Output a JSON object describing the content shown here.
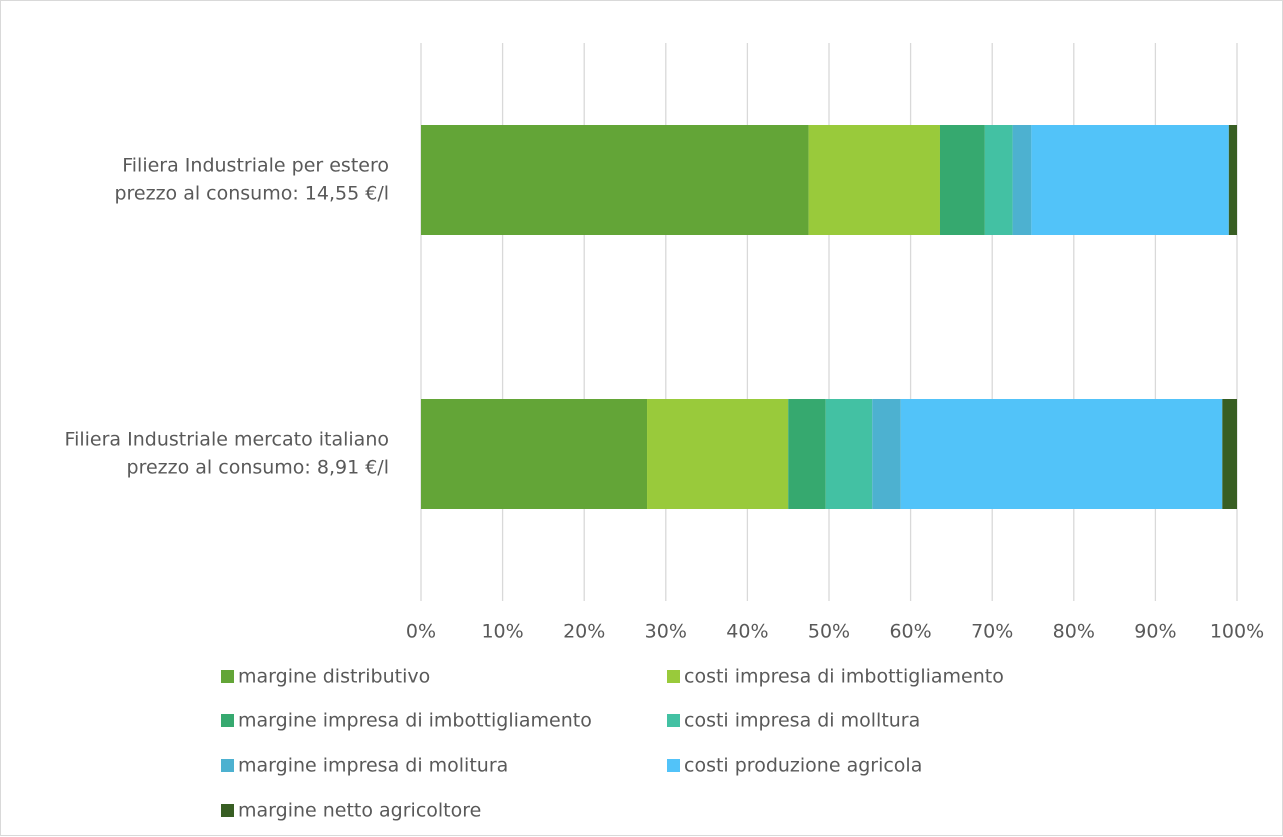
{
  "chart_data": {
    "type": "bar",
    "orientation": "horizontal",
    "stacked": "percent",
    "categories": [
      [
        "Filiera Industriale per estero",
        "prezzo al consumo: 14,55 €/l"
      ],
      [
        "Filiera Industriale mercato italiano",
        "prezzo al consumo: 8,91 €/l"
      ]
    ],
    "series": [
      {
        "name": "margine distributivo",
        "color": "#63a537",
        "values": [
          47.5,
          27.7
        ]
      },
      {
        "name": "costi impresa di imbottigliamento",
        "color": "#99ca3b",
        "values": [
          16.1,
          17.3
        ]
      },
      {
        "name": "margine impresa di imbottigliamento",
        "color": "#36a96f",
        "values": [
          5.5,
          4.6
        ]
      },
      {
        "name": "costi impresa di molltura",
        "color": "#43c1a3",
        "values": [
          3.4,
          5.7
        ]
      },
      {
        "name": "margine impresa di molitura",
        "color": "#4db1d0",
        "values": [
          2.3,
          3.5
        ]
      },
      {
        "name": "costi produzione agricola",
        "color": "#52c3f9",
        "values": [
          24.2,
          39.4
        ]
      },
      {
        "name": "margine netto agricoltore",
        "color": "#385e23",
        "values": [
          1.0,
          1.8
        ]
      }
    ],
    "x_ticks": [
      "0%",
      "10%",
      "20%",
      "30%",
      "40%",
      "50%",
      "60%",
      "70%",
      "80%",
      "90%",
      "100%"
    ],
    "xlim": [
      0,
      100
    ],
    "grid": true,
    "legend_position": "bottom"
  }
}
